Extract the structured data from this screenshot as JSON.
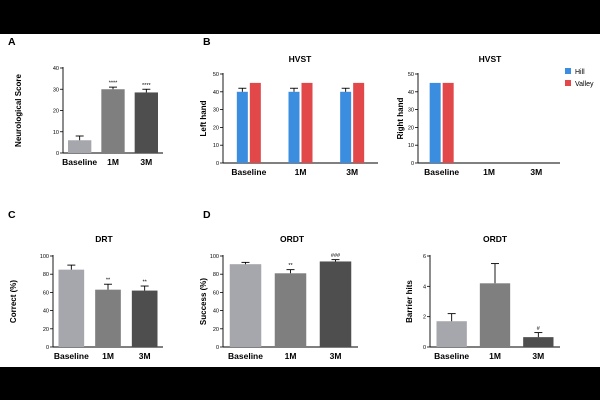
{
  "colors": {
    "baseline": "#a6a6ad",
    "m1": "#7f7f7f",
    "m3": "#4e4e4e",
    "hill": "#3b8de0",
    "valley": "#e2474a"
  },
  "panel_labels": [
    "A",
    "B",
    "C",
    "D"
  ],
  "legend": [
    {
      "name": "Hill",
      "color": "#3b8de0"
    },
    {
      "name": "Valley",
      "color": "#e2474a"
    }
  ],
  "chart_data": [
    {
      "id": "A",
      "type": "bar",
      "title": "",
      "ylabel": "Neurological Score",
      "ylim": [
        0,
        40
      ],
      "yticks": [
        "0",
        "10",
        "20",
        "30",
        "40"
      ],
      "categories": [
        "Baseline",
        "1M",
        "3M"
      ],
      "values": [
        6,
        30,
        28.5
      ],
      "errors": [
        2,
        1,
        1.5
      ],
      "annotations": [
        "",
        "****",
        "****"
      ]
    },
    {
      "id": "B1",
      "type": "bar",
      "title": "HVST",
      "ylabel": "Left hand",
      "ylim": [
        0,
        50
      ],
      "yticks": [
        "0",
        "10",
        "20",
        "30",
        "40",
        "50"
      ],
      "categories": [
        "Baseline",
        "1M",
        "3M"
      ],
      "series": [
        {
          "name": "Hill",
          "values": [
            40,
            40,
            40
          ],
          "errors": [
            2,
            2,
            2
          ]
        },
        {
          "name": "Valley",
          "values": [
            45,
            45,
            45
          ],
          "errors": [
            0,
            0,
            0
          ]
        }
      ]
    },
    {
      "id": "B2",
      "type": "bar",
      "title": "HVST",
      "ylabel": "Right hand",
      "ylim": [
        0,
        50
      ],
      "yticks": [
        "0",
        "10",
        "20",
        "30",
        "40",
        "50"
      ],
      "categories": [
        "Baseline",
        "1M",
        "3M"
      ],
      "series": [
        {
          "name": "Hill",
          "values": [
            45,
            0,
            0
          ],
          "errors": [
            0,
            0,
            0
          ]
        },
        {
          "name": "Valley",
          "values": [
            45,
            0,
            0
          ],
          "errors": [
            0,
            0,
            0
          ]
        }
      ]
    },
    {
      "id": "C",
      "type": "bar",
      "title": "DRT",
      "ylabel": "Correct (%)",
      "ylim": [
        0,
        100
      ],
      "yticks": [
        "0",
        "20",
        "40",
        "60",
        "80",
        "100"
      ],
      "categories": [
        "Baseline",
        "1M",
        "3M"
      ],
      "values": [
        85,
        63,
        62
      ],
      "errors": [
        5,
        6,
        5
      ],
      "annotations": [
        "",
        "**",
        "**"
      ]
    },
    {
      "id": "D1",
      "type": "bar",
      "title": "ORDT",
      "ylabel": "Success (%)",
      "ylim": [
        0,
        100
      ],
      "yticks": [
        "0",
        "20",
        "40",
        "60",
        "80",
        "100"
      ],
      "categories": [
        "Baseline",
        "1M",
        "3M"
      ],
      "values": [
        91,
        81,
        94
      ],
      "errors": [
        2,
        4,
        2
      ],
      "annotations": [
        "",
        "**",
        "###"
      ]
    },
    {
      "id": "D2",
      "type": "bar",
      "title": "ORDT",
      "ylabel": "Barrier hits",
      "ylim": [
        0,
        6
      ],
      "yticks": [
        "0",
        "2",
        "4",
        "6"
      ],
      "categories": [
        "Baseline",
        "1M",
        "3M"
      ],
      "values": [
        1.7,
        4.2,
        0.65
      ],
      "errors": [
        0.5,
        1.3,
        0.3
      ],
      "annotations": [
        "",
        "",
        "#"
      ]
    }
  ]
}
